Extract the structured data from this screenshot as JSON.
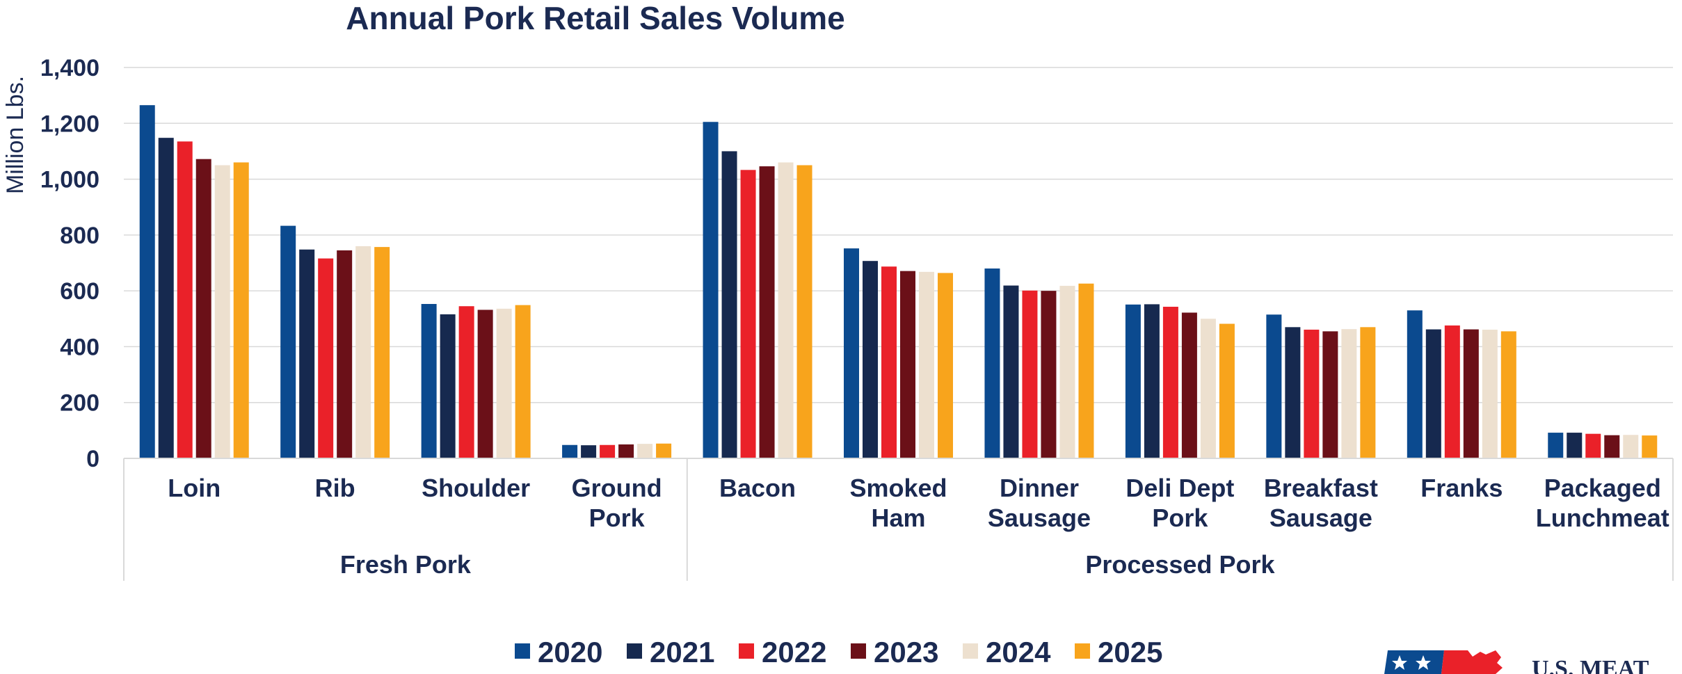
{
  "chart_data": {
    "type": "bar",
    "title": "Annual Pork Retail Sales Volume",
    "ylabel": "Million Lbs.",
    "ylim": [
      0,
      1400
    ],
    "yticks": [
      "0",
      "200",
      "400",
      "600",
      "800",
      "1,000",
      "1,200",
      "1,400"
    ],
    "grid": true,
    "legend_position": "bottom",
    "categories": [
      [
        "Loin"
      ],
      [
        "Rib"
      ],
      [
        "Shoulder"
      ],
      [
        "Ground",
        "Pork"
      ],
      [
        "Bacon"
      ],
      [
        "Smoked",
        "Ham"
      ],
      [
        "Dinner",
        "Sausage"
      ],
      [
        "Deli Dept",
        "Pork"
      ],
      [
        "Breakfast",
        "Sausage"
      ],
      [
        "Franks"
      ],
      [
        "Packaged",
        "Lunchmeat"
      ]
    ],
    "groups": [
      {
        "label": "Fresh Pork",
        "start": 0,
        "end": 3
      },
      {
        "label": "Processed Pork",
        "start": 4,
        "end": 10
      }
    ],
    "series": [
      {
        "name": "2020",
        "color": "#0b4a8f",
        "values": [
          1265,
          833,
          553,
          48,
          1205,
          752,
          680,
          551,
          515,
          530,
          92
        ]
      },
      {
        "name": "2021",
        "color": "#16294f",
        "values": [
          1148,
          748,
          516,
          47,
          1100,
          707,
          619,
          552,
          470,
          462,
          92
        ]
      },
      {
        "name": "2022",
        "color": "#ea2129",
        "values": [
          1135,
          716,
          545,
          48,
          1033,
          687,
          601,
          543,
          461,
          476,
          88
        ]
      },
      {
        "name": "2023",
        "color": "#6b1018",
        "values": [
          1072,
          745,
          532,
          50,
          1046,
          671,
          600,
          522,
          455,
          462,
          83
        ]
      },
      {
        "name": "2024",
        "color": "#ede0cf",
        "values": [
          1050,
          760,
          536,
          52,
          1060,
          668,
          618,
          500,
          463,
          461,
          84
        ]
      },
      {
        "name": "2025",
        "color": "#f8a41c",
        "values": [
          1060,
          757,
          549,
          53,
          1050,
          664,
          626,
          482,
          470,
          455,
          82
        ]
      }
    ]
  },
  "logo": {
    "text": "U.S. MEAT",
    "icon": "usmef-flag-logo-icon"
  }
}
